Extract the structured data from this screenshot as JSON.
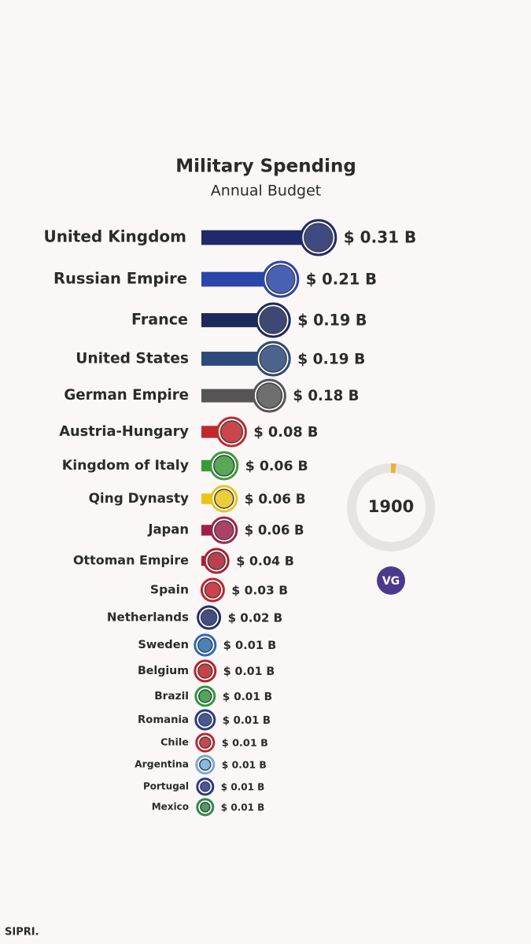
{
  "chart_data": {
    "type": "bar",
    "title": "Military Spending",
    "subtitle": "Annual Budget",
    "categories": [
      "United Kingdom",
      "Russian Empire",
      "France",
      "United States",
      "German Empire",
      "Austria-Hungary",
      "Kingdom of Italy",
      "Qing Dynasty",
      "Japan",
      "Ottoman Empire",
      "Spain",
      "Netherlands",
      "Sweden",
      "Belgium",
      "Brazil",
      "Romania",
      "Chile",
      "Argentina",
      "Portugal",
      "Mexico"
    ],
    "values": [
      0.31,
      0.21,
      0.19,
      0.19,
      0.18,
      0.08,
      0.06,
      0.06,
      0.06,
      0.04,
      0.03,
      0.02,
      0.01,
      0.01,
      0.01,
      0.01,
      0.01,
      0.01,
      0.01,
      0.01
    ],
    "value_labels": [
      "$ 0.31 B",
      "$ 0.21 B",
      "$ 0.19 B",
      "$ 0.19 B",
      "$ 0.18 B",
      "$ 0.08 B",
      "$ 0.06 B",
      "$ 0.06 B",
      "$ 0.06 B",
      "$ 0.04 B",
      "$ 0.03 B",
      "$ 0.02 B",
      "$ 0.01 B",
      "$ 0.01 B",
      "$ 0.01 B",
      "$ 0.01 B",
      "$ 0.01 B",
      "$ 0.01 B",
      "$ 0.01 B",
      "$ 0.01 B"
    ],
    "colors": [
      "#1f2a6b",
      "#2a46a8",
      "#1c2a5c",
      "#2d4a7a",
      "#555555",
      "#c0282d",
      "#3a9a3a",
      "#e8c517",
      "#a0204a",
      "#b01e2e",
      "#c8202a",
      "#24306e",
      "#2a6db0",
      "#c02028",
      "#2d9a3a",
      "#2a3a8a",
      "#c0282d",
      "#74acdf",
      "#2a3a8a",
      "#2e8b4a"
    ],
    "year": "1900",
    "logo": "VG",
    "source": "SIPRI."
  }
}
